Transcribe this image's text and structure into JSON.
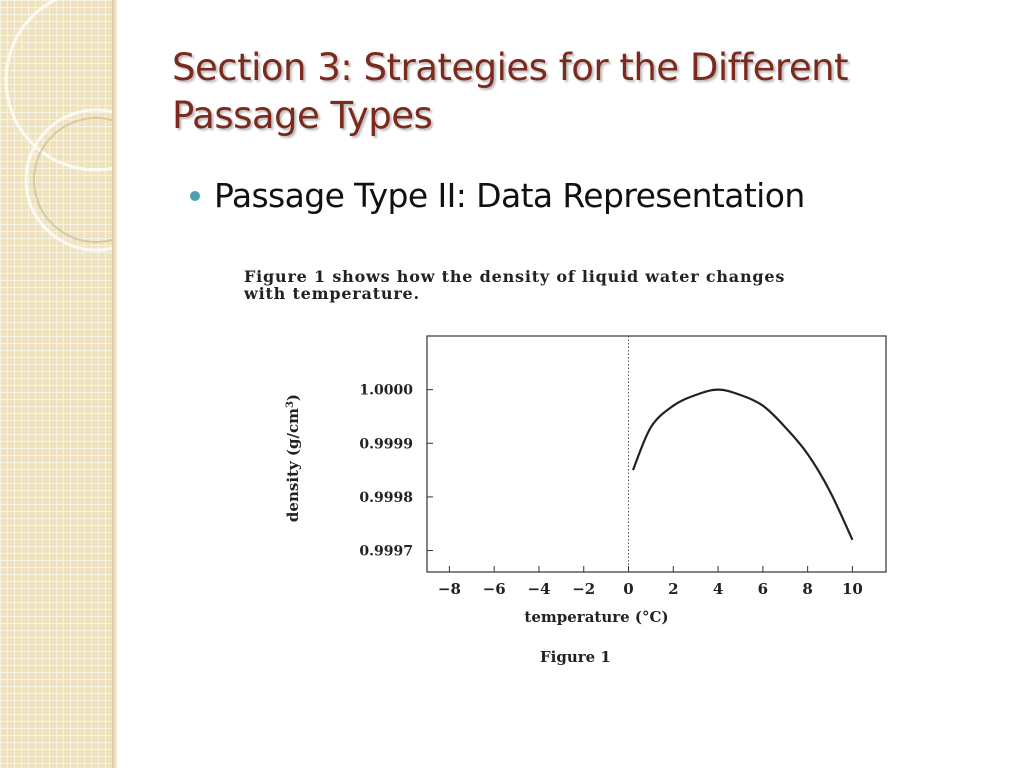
{
  "slide": {
    "title_line1": "Section 3:  Strategies for the Different",
    "title_line2": "Passage Types",
    "bullet": "Passage Type II:  Data Representation",
    "caption_line1": "Figure 1 shows how the density of liquid water changes",
    "caption_line2": "with temperature.",
    "figure_label": "Figure 1",
    "colors": {
      "title": "#7b2a1e",
      "bullet": "#4f9fb2",
      "sidebar": "#efe3bf"
    }
  },
  "chart_data": {
    "type": "line",
    "xlabel": "temperature (°C)",
    "ylabel": "density (g/cm",
    "ylabel_sup": "3",
    "ylabel_close": ")",
    "xlim": [
      -9,
      11.5
    ],
    "ylim": [
      0.99966,
      1.0001
    ],
    "xticks": [
      -8,
      -6,
      -4,
      -2,
      0,
      2,
      4,
      6,
      8,
      10
    ],
    "xtick_labels": [
      "−8",
      "−6",
      "−4",
      "−2",
      "0",
      "2",
      "4",
      "6",
      "8",
      "10"
    ],
    "yticks": [
      0.9997,
      0.9998,
      0.9999,
      1.0
    ],
    "ytick_labels": [
      "0.9997",
      "0.9998",
      "0.9999",
      "1.0000"
    ],
    "reference_line_x": 0,
    "grid": false,
    "series": [
      {
        "x": [
          0.2,
          1,
          2,
          3,
          4,
          5,
          6,
          7,
          8,
          9,
          10
        ],
        "y": [
          0.99985,
          0.99993,
          0.99997,
          0.99999,
          1.0,
          0.99999,
          0.99997,
          0.99993,
          0.99988,
          0.99981,
          0.99972
        ]
      }
    ]
  }
}
